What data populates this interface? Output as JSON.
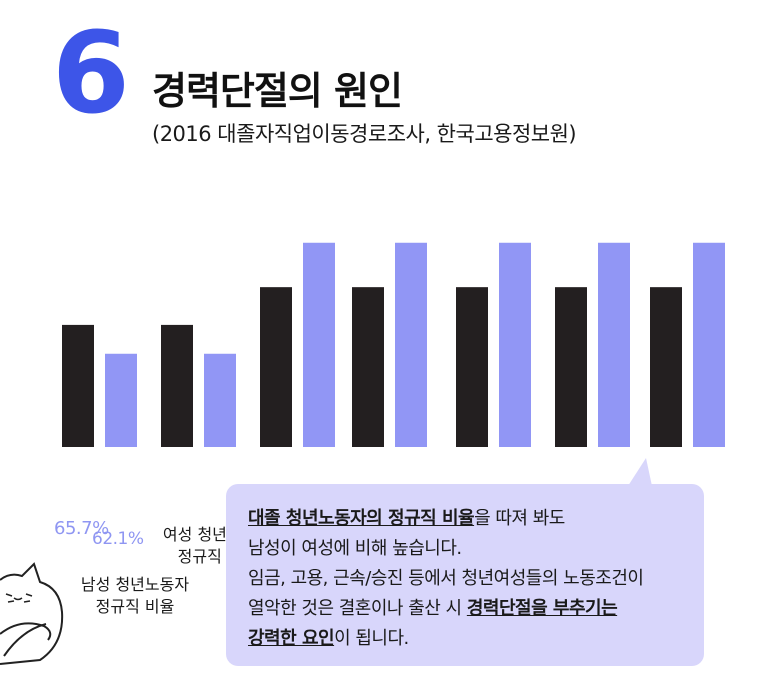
{
  "header": {
    "number": "6",
    "title": "경력단절의 원인",
    "subtitle": "(2016 대졸자직업이동경로조사, 한국고용정보원)"
  },
  "colors": {
    "accent": "#3d55e8",
    "male_bar": "#231f20",
    "female_bar": "#9196f5",
    "callout_bg": "#d8d6fb"
  },
  "chart_data": {
    "type": "bar",
    "categories": [
      "",
      "",
      "",
      "",
      "",
      ""
    ],
    "series": [
      {
        "values": [
          55,
          55,
          72,
          72,
          72,
          72
        ]
      },
      {
        "values": [
          42,
          42,
          92,
          92,
          92,
          92
        ]
      }
    ],
    "ylim": [
      0,
      100
    ],
    "grid": false,
    "labels": {
      "pct_a": "65.7%",
      "pct_b": "62.1%"
    },
    "legend": {
      "female": [
        "여성 청년노동자",
        "정규직 비율"
      ],
      "male": [
        "남성 청년노동자",
        "정규직 비율"
      ]
    }
  },
  "callout": {
    "line1_bold": "대졸 청년노동자의 정규직 비율",
    "line1_rest": "을 따져 봐도",
    "line2": "남성이 여성에 비해 높습니다.",
    "line3": "임금, 고용, 근속/승진 등에서 청년여성들의 노동조건이",
    "line4_pre": "열악한 것은 결혼이나 출산 시 ",
    "line4_bold": "경력단절을 부추기는",
    "line5_bold": "강력한 요인",
    "line5_rest": "이 됩니다."
  }
}
